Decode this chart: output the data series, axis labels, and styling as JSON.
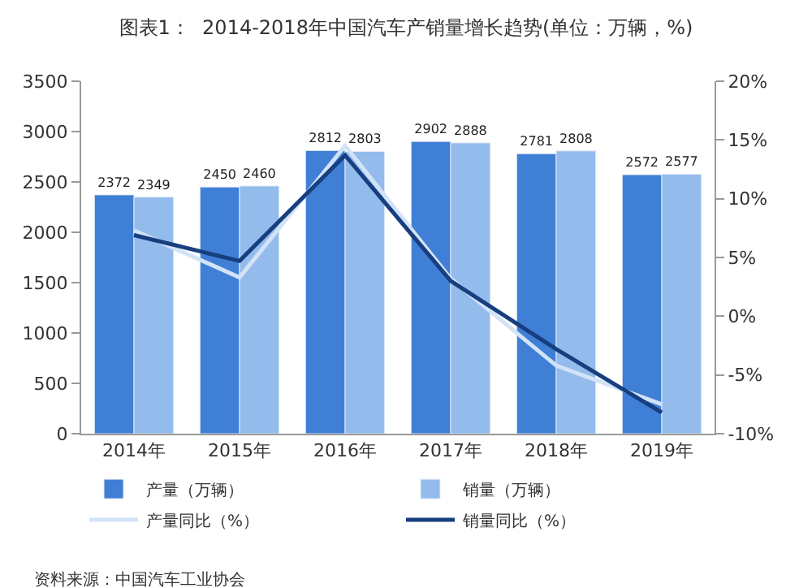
{
  "chart_data": {
    "type": "bar",
    "title": "图表1：  2014-2018年中国汽车产销量增长趋势(单位：万辆，%)",
    "categories": [
      "2014年",
      "2015年",
      "2016年",
      "2017年",
      "2018年",
      "2019年"
    ],
    "series": [
      {
        "name": "产量（万辆）",
        "color": "#3f7fd6",
        "values": [
          2372,
          2450,
          2812,
          2902,
          2781,
          2572
        ],
        "value_labels": [
          "2372",
          "2450",
          "2812",
          "2902",
          "2781",
          "2572"
        ]
      },
      {
        "name": "销量（万辆）",
        "color": "#93bbec",
        "values": [
          2349,
          2460,
          2803,
          2888,
          2808,
          2577
        ],
        "value_labels": [
          "2349",
          "2460",
          "2803",
          "2888",
          "2808",
          "2577"
        ]
      },
      {
        "name": "产量同比（%）",
        "type": "line",
        "axis": "y2",
        "color": "#d2e3f7",
        "values": [
          7.3,
          3.3,
          14.5,
          3.2,
          -4.2,
          -7.5
        ]
      },
      {
        "name": "销量同比（%）",
        "type": "line",
        "axis": "y2",
        "color": "#173f80",
        "values": [
          6.9,
          4.7,
          13.7,
          3.0,
          -2.8,
          -8.2
        ]
      }
    ],
    "ylim": [
      0,
      3500
    ],
    "yticks": [
      0,
      500,
      1000,
      1500,
      2000,
      2500,
      3000,
      3500
    ],
    "y2lim": [
      -10,
      20
    ],
    "y2ticks": [
      {
        "value": -10,
        "label": "-10%"
      },
      {
        "value": -5,
        "label": "-5%"
      },
      {
        "value": 0,
        "label": "0%"
      },
      {
        "value": 5,
        "label": "5%"
      },
      {
        "value": 10,
        "label": "10%"
      },
      {
        "value": 15,
        "label": "15%"
      },
      {
        "value": 20,
        "label": "20%"
      }
    ],
    "legend": "bottom",
    "marker": "none",
    "line_style": "solid",
    "annotations": [
      "资料来源：中国汽车工业协会"
    ]
  }
}
